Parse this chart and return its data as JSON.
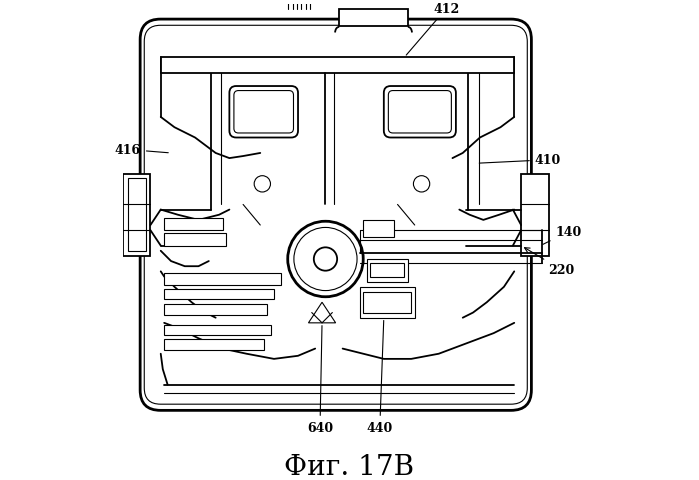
{
  "title": "Фиг. 17B",
  "title_fontsize": 20,
  "background_color": "#ffffff",
  "line_color": "#000000",
  "fig_width": 6.99,
  "fig_height": 4.81,
  "dpi": 100
}
